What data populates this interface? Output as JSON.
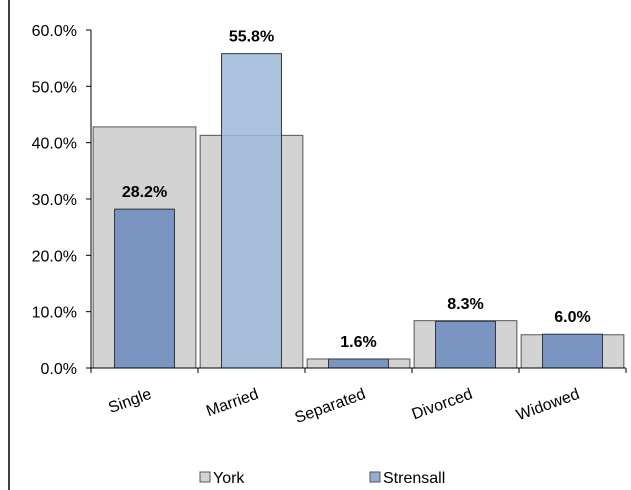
{
  "chart_data": {
    "type": "bar",
    "categories": [
      "Single",
      "Married",
      "Separated",
      "Divorced",
      "Widowed"
    ],
    "series": [
      {
        "name": "York",
        "values": [
          42.8,
          41.3,
          1.6,
          8.4,
          5.9
        ],
        "color": "#d3d3d3"
      },
      {
        "name": "Strensall",
        "values": [
          28.2,
          55.8,
          1.6,
          8.3,
          6.0
        ],
        "color": "#94aed2"
      }
    ],
    "data_labels": [
      "28.2%",
      "55.8%",
      "1.6%",
      "8.3%",
      "6.0%"
    ],
    "ylim": [
      0,
      60
    ],
    "yticks": [
      "0.0%",
      "10.0%",
      "20.0%",
      "30.0%",
      "40.0%",
      "50.0%",
      "60.0%"
    ],
    "grid": false,
    "legend": "bottom",
    "title": "",
    "xlabel": "",
    "ylabel": ""
  }
}
